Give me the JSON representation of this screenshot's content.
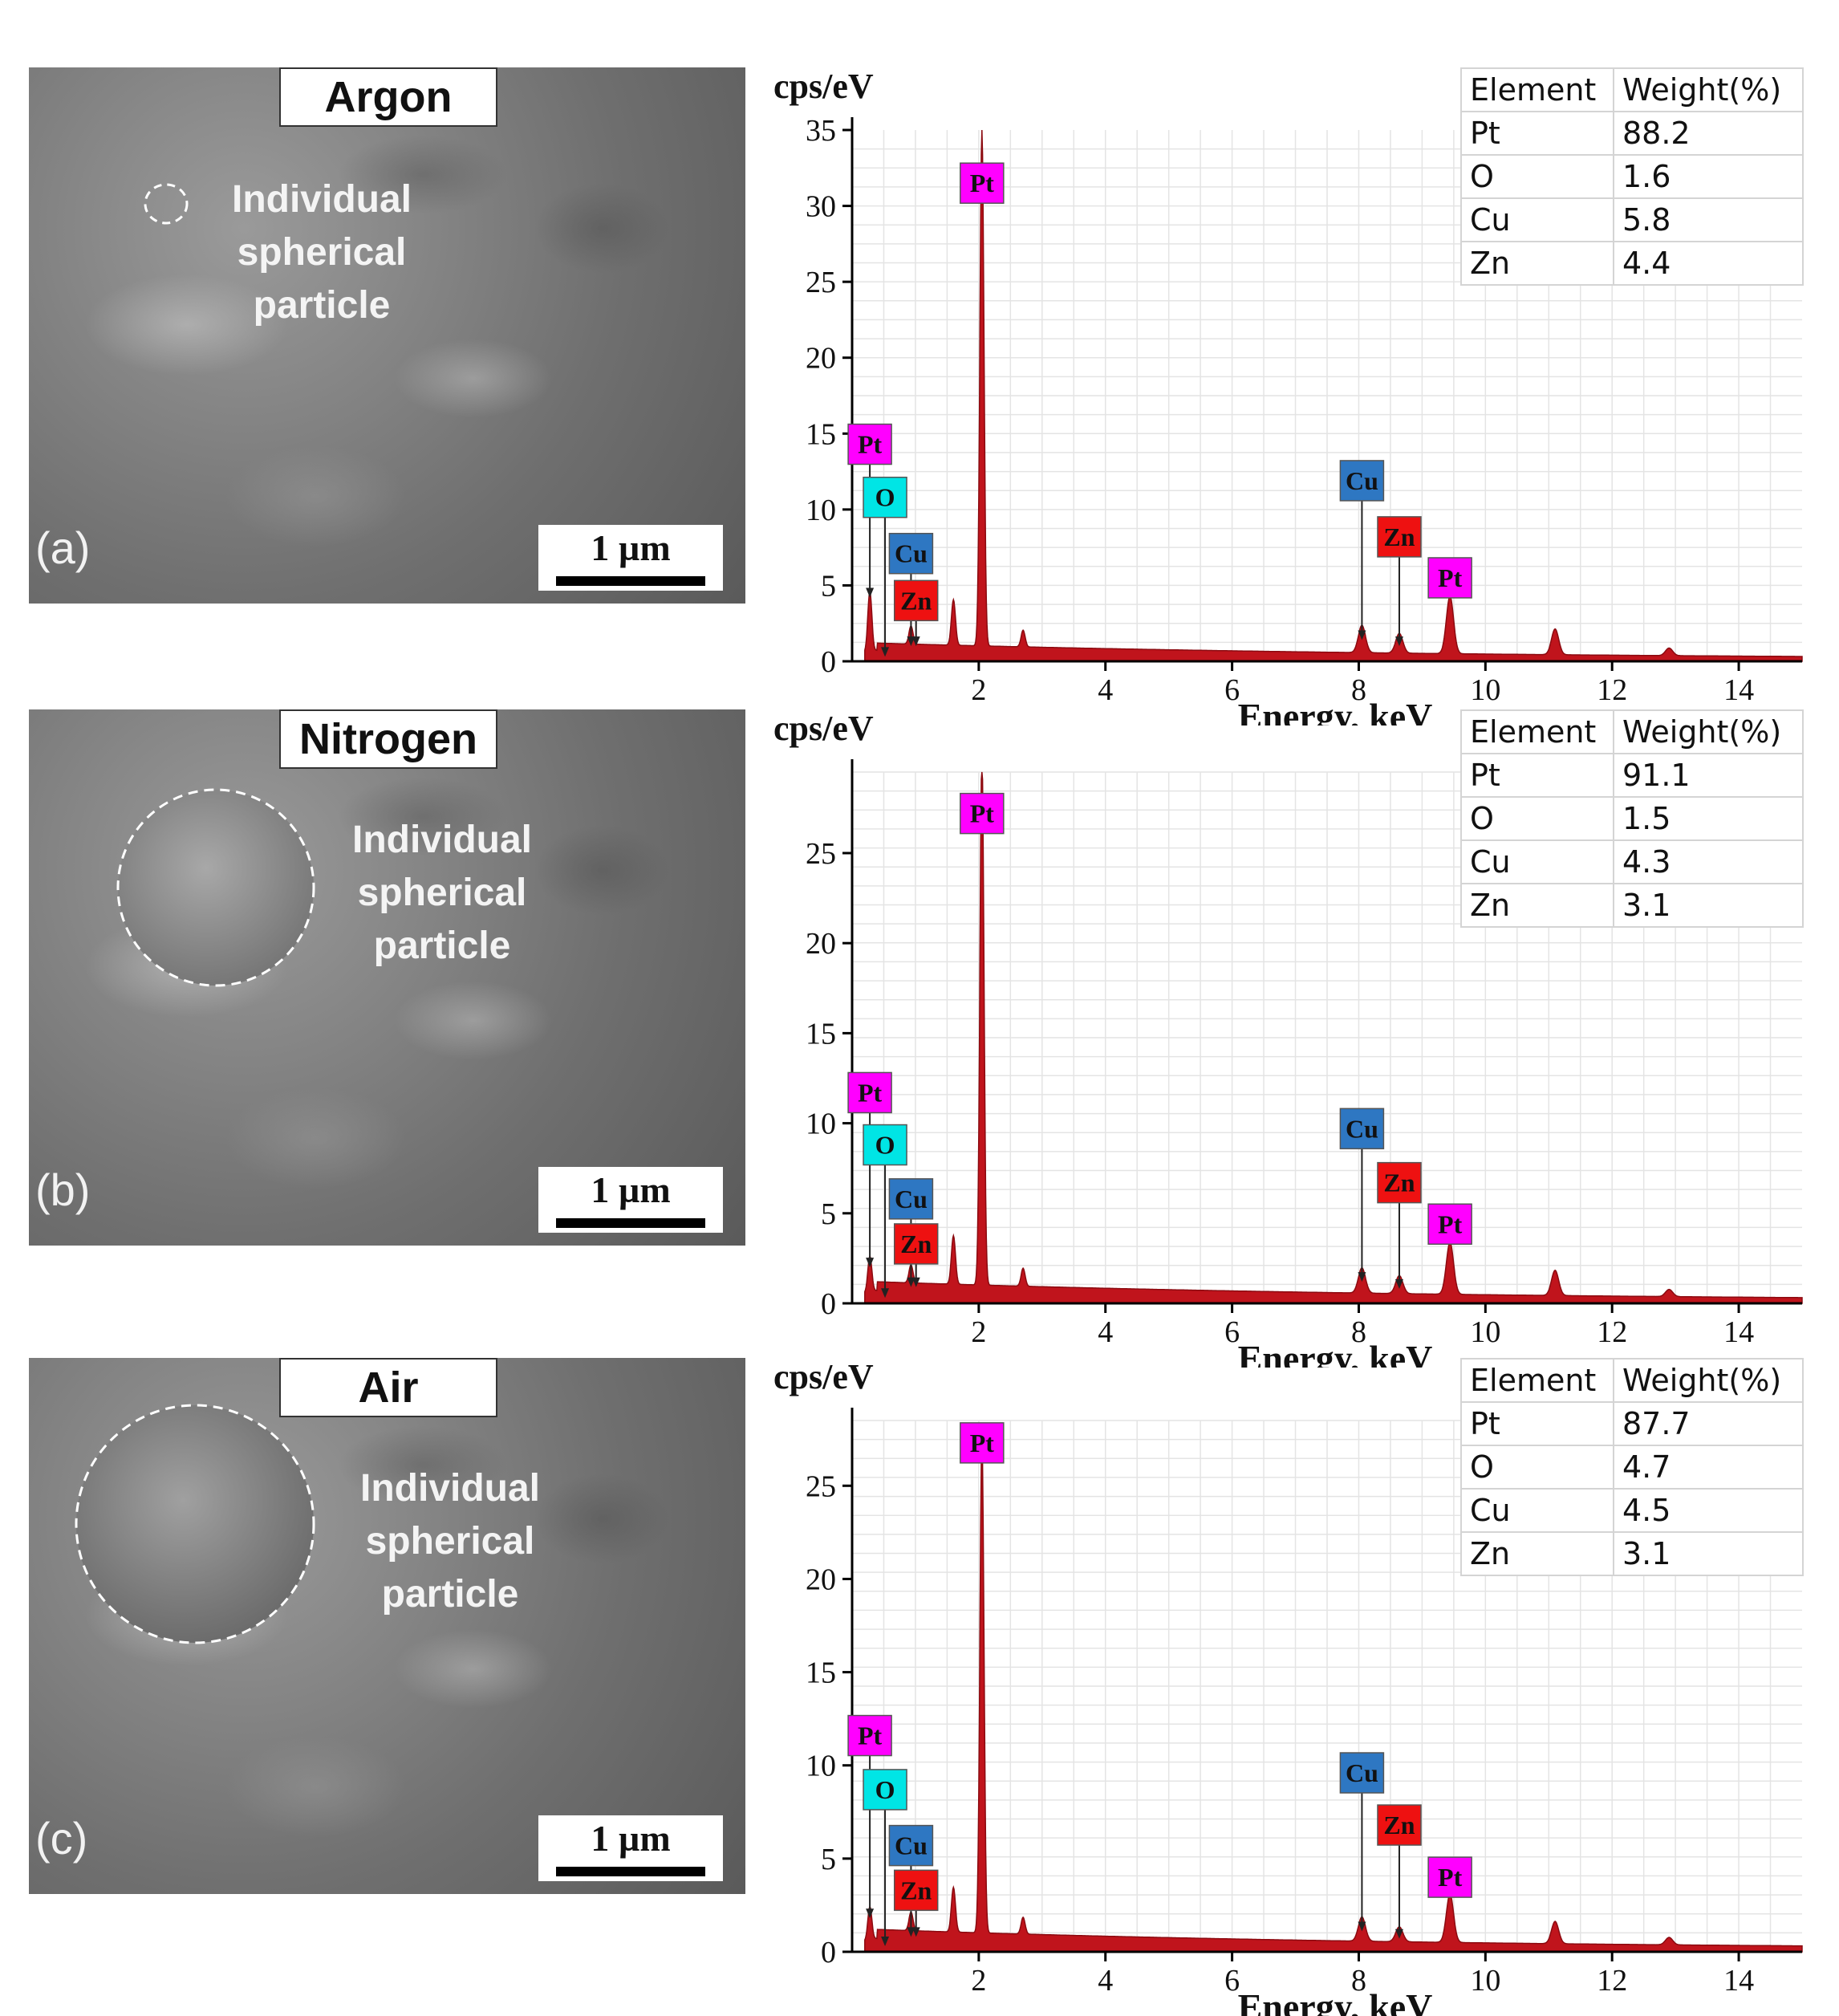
{
  "panels": [
    {
      "letter": "(a)",
      "gas": "Argon",
      "particle_note": [
        "Individual",
        "spherical",
        "particle"
      ],
      "scale": "1 µm",
      "table": {
        "headers": [
          "Element",
          "Weight(%)"
        ],
        "rows": [
          [
            "Pt",
            "88.2"
          ],
          [
            "O",
            "1.6"
          ],
          [
            "Cu",
            "5.8"
          ],
          [
            "Zn",
            "4.4"
          ]
        ]
      }
    },
    {
      "letter": "(b)",
      "gas": "Nitrogen",
      "particle_note": [
        "Individual",
        "spherical",
        "particle"
      ],
      "scale": "1 µm",
      "table": {
        "headers": [
          "Element",
          "Weight(%)"
        ],
        "rows": [
          [
            "Pt",
            "91.1"
          ],
          [
            "O",
            "1.5"
          ],
          [
            "Cu",
            "4.3"
          ],
          [
            "Zn",
            "3.1"
          ]
        ]
      }
    },
    {
      "letter": "(c)",
      "gas": "Air",
      "particle_note": [
        "Individual",
        "spherical",
        "particle"
      ],
      "scale": "1 µm",
      "table": {
        "headers": [
          "Element",
          "Weight(%)"
        ],
        "rows": [
          [
            "Pt",
            "87.7"
          ],
          [
            "O",
            "4.7"
          ],
          [
            "Cu",
            "4.5"
          ],
          [
            "Zn",
            "3.1"
          ]
        ]
      }
    }
  ],
  "colors": {
    "spectrum_fill": "#c0141c",
    "Pt": "#ff00ff",
    "O": "#00e5e5",
    "Cu": "#2e77c2",
    "Zn": "#ee1111",
    "grid": "#e4e4e4"
  },
  "chart_data": [
    {
      "type": "area",
      "ylabel": "cps/eV",
      "xlabel": "Energy, keV",
      "xlim": [
        0,
        15
      ],
      "ylim": [
        0,
        35
      ],
      "xticks": [
        2,
        4,
        6,
        8,
        10,
        12,
        14
      ],
      "yticks": [
        0,
        5,
        10,
        15,
        20,
        25,
        30,
        35
      ],
      "grid": true,
      "peaks": [
        {
          "x": 0.28,
          "y": 4.0
        },
        {
          "x": 0.93,
          "y": 1.2
        },
        {
          "x": 1.6,
          "y": 3.0
        },
        {
          "x": 2.05,
          "y": 34.0
        },
        {
          "x": 2.7,
          "y": 1.1
        },
        {
          "x": 8.05,
          "y": 1.8
        },
        {
          "x": 8.64,
          "y": 1.3
        },
        {
          "x": 9.44,
          "y": 3.8
        },
        {
          "x": 11.1,
          "y": 1.7
        },
        {
          "x": 12.9,
          "y": 0.5
        }
      ],
      "annotations": [
        {
          "label": "Pt",
          "x": 2.05,
          "label_y": 31.5,
          "arrow_to_y": null
        },
        {
          "label": "Pt",
          "x": 0.28,
          "label_y": 14.3,
          "arrow_to_y": 4.2
        },
        {
          "label": "O",
          "x": 0.52,
          "label_y": 10.8,
          "arrow_to_y": 0.3
        },
        {
          "label": "Cu",
          "x": 0.93,
          "label_y": 7.1,
          "arrow_to_y": 1.0
        },
        {
          "label": "Zn",
          "x": 1.01,
          "label_y": 4.0,
          "arrow_to_y": 1.0
        },
        {
          "label": "Cu",
          "x": 8.05,
          "label_y": 11.9,
          "arrow_to_y": 1.4
        },
        {
          "label": "Zn",
          "x": 8.64,
          "label_y": 8.2,
          "arrow_to_y": 1.0
        },
        {
          "label": "Pt",
          "x": 9.44,
          "label_y": 5.5,
          "arrow_to_y": null
        }
      ]
    },
    {
      "type": "area",
      "ylabel": "cps/eV",
      "xlabel": "Energy, keV",
      "xlim": [
        0,
        15
      ],
      "ylim": [
        0,
        29.5
      ],
      "xticks": [
        2,
        4,
        6,
        8,
        10,
        12,
        14
      ],
      "yticks": [
        0,
        5,
        10,
        15,
        20,
        25
      ],
      "grid": true,
      "peaks": [
        {
          "x": 0.28,
          "y": 2.0
        },
        {
          "x": 0.93,
          "y": 1.0
        },
        {
          "x": 1.6,
          "y": 2.7
        },
        {
          "x": 2.05,
          "y": 29.5
        },
        {
          "x": 2.7,
          "y": 1.0
        },
        {
          "x": 8.05,
          "y": 1.4
        },
        {
          "x": 8.64,
          "y": 1.0
        },
        {
          "x": 9.44,
          "y": 2.9
        },
        {
          "x": 11.1,
          "y": 1.4
        },
        {
          "x": 12.9,
          "y": 0.4
        }
      ],
      "annotations": [
        {
          "label": "Pt",
          "x": 2.05,
          "label_y": 27.2,
          "arrow_to_y": null
        },
        {
          "label": "Pt",
          "x": 0.28,
          "label_y": 11.7,
          "arrow_to_y": 2.0
        },
        {
          "label": "O",
          "x": 0.52,
          "label_y": 8.8,
          "arrow_to_y": 0.3
        },
        {
          "label": "Cu",
          "x": 0.93,
          "label_y": 5.8,
          "arrow_to_y": 0.9
        },
        {
          "label": "Zn",
          "x": 1.01,
          "label_y": 3.3,
          "arrow_to_y": 0.9
        },
        {
          "label": "Cu",
          "x": 8.05,
          "label_y": 9.7,
          "arrow_to_y": 1.2
        },
        {
          "label": "Zn",
          "x": 8.64,
          "label_y": 6.7,
          "arrow_to_y": 0.8
        },
        {
          "label": "Pt",
          "x": 9.44,
          "label_y": 4.4,
          "arrow_to_y": null
        }
      ]
    },
    {
      "type": "area",
      "ylabel": "cps/eV",
      "xlabel": "Energy, keV",
      "xlim": [
        0,
        15
      ],
      "ylim": [
        0,
        28.5
      ],
      "xticks": [
        2,
        4,
        6,
        8,
        10,
        12,
        14
      ],
      "yticks": [
        0,
        5,
        10,
        15,
        20,
        25
      ],
      "grid": true,
      "peaks": [
        {
          "x": 0.28,
          "y": 1.8
        },
        {
          "x": 0.93,
          "y": 1.0
        },
        {
          "x": 1.6,
          "y": 2.4
        },
        {
          "x": 2.05,
          "y": 26.5
        },
        {
          "x": 2.7,
          "y": 0.9
        },
        {
          "x": 8.05,
          "y": 1.3
        },
        {
          "x": 8.64,
          "y": 0.8
        },
        {
          "x": 9.44,
          "y": 2.6
        },
        {
          "x": 11.1,
          "y": 1.2
        },
        {
          "x": 12.9,
          "y": 0.4
        }
      ],
      "annotations": [
        {
          "label": "Pt",
          "x": 2.05,
          "label_y": 27.3,
          "arrow_to_y": null
        },
        {
          "label": "Pt",
          "x": 0.28,
          "label_y": 11.6,
          "arrow_to_y": 1.8
        },
        {
          "label": "O",
          "x": 0.52,
          "label_y": 8.7,
          "arrow_to_y": 0.3
        },
        {
          "label": "Cu",
          "x": 0.93,
          "label_y": 5.7,
          "arrow_to_y": 0.8
        },
        {
          "label": "Zn",
          "x": 1.01,
          "label_y": 3.3,
          "arrow_to_y": 0.8
        },
        {
          "label": "Cu",
          "x": 8.05,
          "label_y": 9.6,
          "arrow_to_y": 1.1
        },
        {
          "label": "Zn",
          "x": 8.64,
          "label_y": 6.8,
          "arrow_to_y": 0.7
        },
        {
          "label": "Pt",
          "x": 9.44,
          "label_y": 4.0,
          "arrow_to_y": null
        }
      ]
    }
  ]
}
